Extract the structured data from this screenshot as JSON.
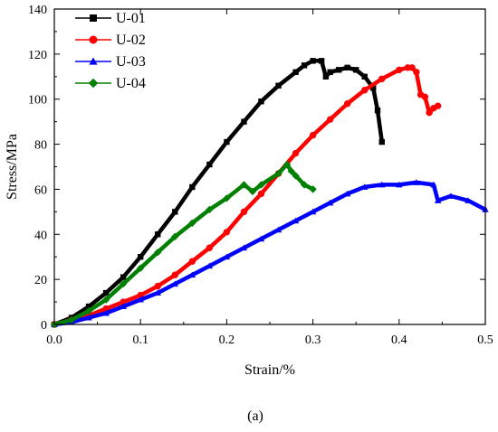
{
  "caption_text": "(a)",
  "chart_data": {
    "type": "line",
    "title": "",
    "xlabel": "Strain/%",
    "ylabel": "Stress/MPa",
    "xlim": [
      0.0,
      0.5
    ],
    "ylim": [
      0,
      140
    ],
    "x_ticks": [
      0.0,
      0.1,
      0.2,
      0.3,
      0.4,
      0.5
    ],
    "x_tick_labels": [
      "0.0",
      "0.1",
      "0.2",
      "0.3",
      "0.4",
      "0.5"
    ],
    "y_ticks": [
      0,
      20,
      40,
      60,
      80,
      100,
      120,
      140
    ],
    "y_tick_labels": [
      "0",
      "20",
      "40",
      "60",
      "80",
      "100",
      "120",
      "140"
    ],
    "grid": false,
    "legend_position": "top-left",
    "series": [
      {
        "name": "U-01",
        "color": "#000000",
        "marker": "square",
        "x": [
          0.0,
          0.02,
          0.04,
          0.06,
          0.08,
          0.1,
          0.12,
          0.14,
          0.16,
          0.18,
          0.2,
          0.22,
          0.24,
          0.26,
          0.28,
          0.29,
          0.3,
          0.31,
          0.315,
          0.32,
          0.33,
          0.34,
          0.35,
          0.36,
          0.37,
          0.375,
          0.38
        ],
        "y": [
          0,
          3,
          8,
          14,
          21,
          30,
          40,
          50,
          61,
          71,
          81,
          90,
          99,
          106,
          112,
          115,
          117,
          117,
          110,
          112,
          113,
          114,
          113,
          110,
          105,
          95,
          81
        ]
      },
      {
        "name": "U-02",
        "color": "#ff0000",
        "marker": "circle",
        "x": [
          0.0,
          0.02,
          0.04,
          0.06,
          0.08,
          0.1,
          0.12,
          0.14,
          0.16,
          0.18,
          0.2,
          0.22,
          0.24,
          0.26,
          0.28,
          0.3,
          0.32,
          0.34,
          0.36,
          0.38,
          0.4,
          0.41,
          0.415,
          0.42,
          0.425,
          0.43,
          0.435,
          0.44,
          0.445
        ],
        "y": [
          0,
          2,
          4,
          7,
          10,
          13,
          17,
          22,
          28,
          34,
          41,
          50,
          58,
          67,
          76,
          84,
          91,
          98,
          104,
          109,
          113,
          114,
          114,
          112,
          102,
          101,
          94,
          96,
          97
        ]
      },
      {
        "name": "U-03",
        "color": "#0000ff",
        "marker": "triangle",
        "x": [
          0.0,
          0.02,
          0.04,
          0.06,
          0.08,
          0.1,
          0.12,
          0.14,
          0.16,
          0.18,
          0.2,
          0.22,
          0.24,
          0.26,
          0.28,
          0.3,
          0.32,
          0.34,
          0.36,
          0.38,
          0.4,
          0.42,
          0.44,
          0.445,
          0.46,
          0.48,
          0.5
        ],
        "y": [
          0,
          1,
          3,
          5,
          8,
          11,
          14,
          18,
          22,
          26,
          30,
          34,
          38,
          42,
          46,
          50,
          54,
          58,
          61,
          62,
          62,
          63,
          62,
          55,
          57,
          55,
          51
        ]
      },
      {
        "name": "U-04",
        "color": "#008000",
        "marker": "diamond",
        "x": [
          0.0,
          0.02,
          0.04,
          0.06,
          0.08,
          0.1,
          0.12,
          0.14,
          0.16,
          0.18,
          0.2,
          0.22,
          0.23,
          0.24,
          0.26,
          0.27,
          0.275,
          0.28,
          0.29,
          0.3
        ],
        "y": [
          0,
          2,
          6,
          11,
          18,
          25,
          32,
          39,
          45,
          51,
          56,
          62,
          59,
          62,
          67,
          71,
          68,
          66,
          62,
          60
        ]
      }
    ]
  }
}
